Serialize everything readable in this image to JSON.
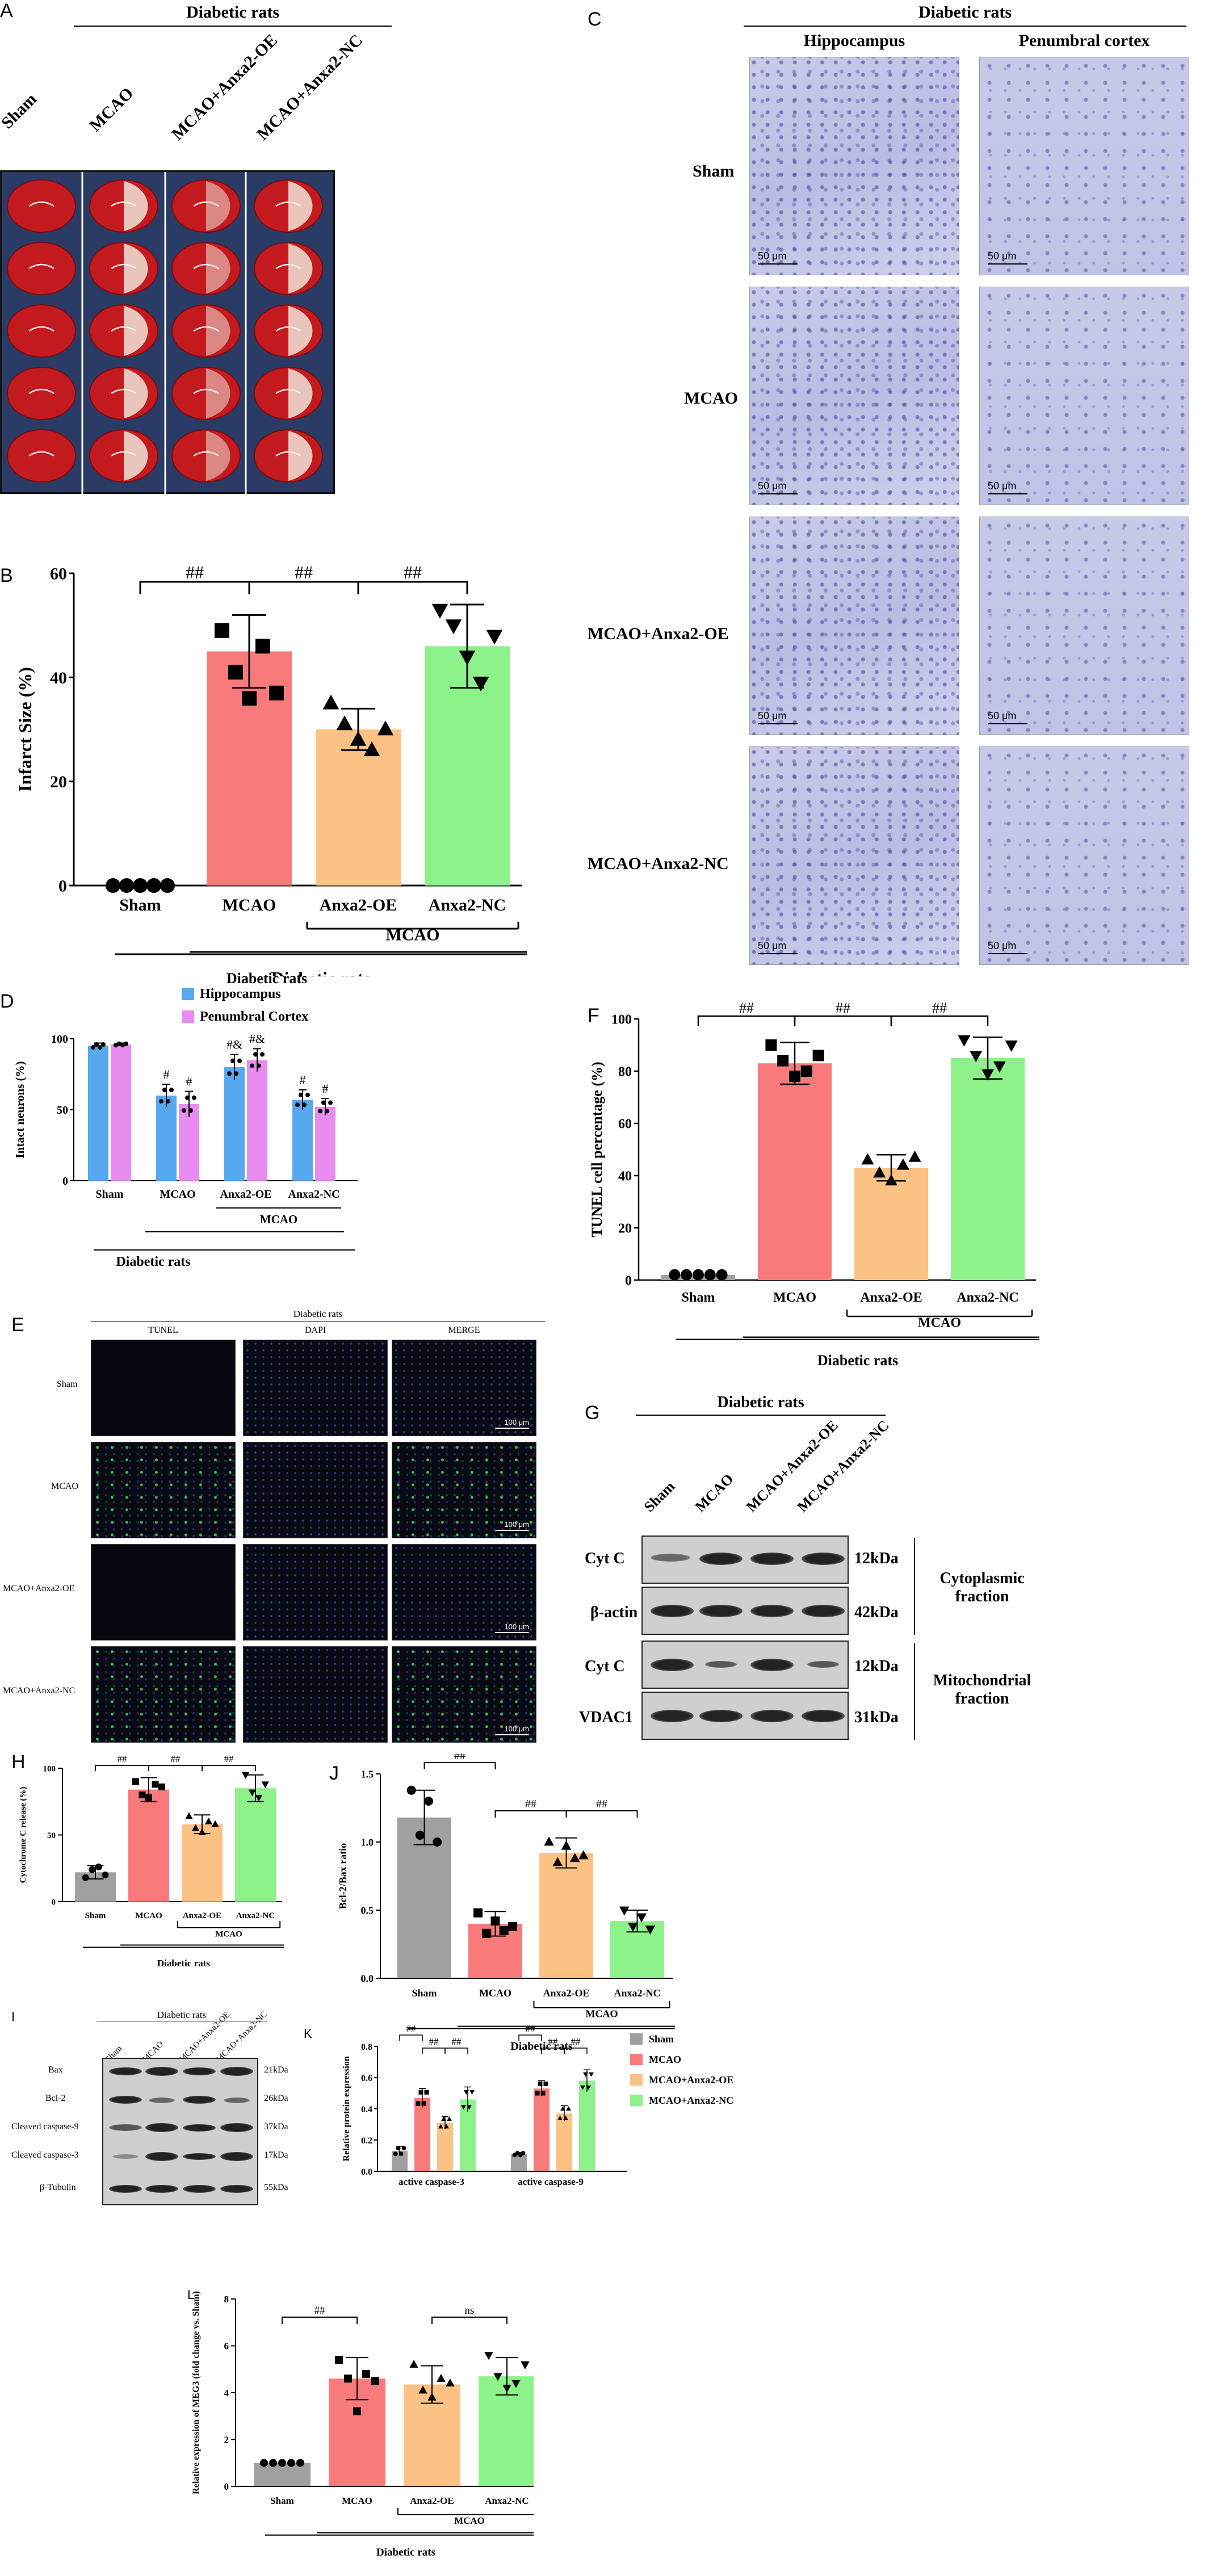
{
  "panels": {
    "A": "A",
    "B": "B",
    "C": "C",
    "D": "D",
    "E": "E",
    "F": "F",
    "G": "G",
    "H": "H",
    "I": "I",
    "J": "J",
    "K": "K",
    "L": "L"
  },
  "group_title": "Diabetic rats",
  "mcao_bracket": "MCAO",
  "groups4": [
    "Sham",
    "MCAO",
    "MCAO+Anxa2-OE",
    "MCAO+Anxa2-NC"
  ],
  "xcats": [
    "Sham",
    "MCAO",
    "Anxa2-OE",
    "Anxa2-NC"
  ],
  "sig": {
    "hh": "##",
    "ns": "ns",
    "h": "#",
    "hamp": "#&"
  },
  "panelC": {
    "cols": [
      "Hippocampus",
      "Penumbral cortex"
    ],
    "rows": [
      "Sham",
      "MCAO",
      "MCAO+Anxa2-OE",
      "MCAO+Anxa2-NC"
    ],
    "scale": "50 μm"
  },
  "panelE": {
    "cols": [
      "TUNEL",
      "DAPI",
      "MERGE"
    ],
    "rows": [
      "Sham",
      "MCAO",
      "MCAO+Anxa2-OE",
      "MCAO+Anxa2-NC"
    ],
    "scale": "100 μm"
  },
  "panelG": {
    "rows": [
      "Cyt C",
      "β-actin",
      "Cyt C",
      "VDAC1"
    ],
    "kda": [
      "12kDa",
      "42kDa",
      "12kDa",
      "31kDa"
    ],
    "fractions": [
      "Cytoplasmic fraction",
      "Mitochondrial fraction"
    ]
  },
  "panelI": {
    "rows": [
      "Bax",
      "Bcl-2",
      "Cleaved caspase-9",
      "Cleaved caspase-3",
      "β-Tubulin"
    ],
    "kda": [
      "21kDa",
      "26kDa",
      "37kDa",
      "17kDa",
      "55kDa"
    ]
  },
  "colors": {
    "sham": "#a0a0a0",
    "mcao": "#f87a7a",
    "oe": "#fcc283",
    "nc": "#8ef28a",
    "hippo": "#56a8ef",
    "cortex": "#e98cf0"
  },
  "chart_data": [
    {
      "id": "B",
      "type": "bar",
      "ylabel": "Infarct Size (%)",
      "ylim": [
        0,
        60
      ],
      "yticks": [
        0,
        20,
        40,
        60
      ],
      "categories": [
        "Sham",
        "MCAO",
        "Anxa2-OE",
        "Anxa2-NC"
      ],
      "values": [
        0,
        45,
        30,
        46
      ],
      "errors": [
        0,
        7,
        4,
        8
      ],
      "points": [
        [
          0,
          0,
          0,
          0,
          0
        ],
        [
          49,
          41,
          36,
          46,
          37
        ],
        [
          35,
          31,
          28,
          26,
          30
        ],
        [
          53,
          50,
          44,
          39,
          48
        ]
      ]
    },
    {
      "id": "D",
      "type": "bar",
      "ylabel": "Intact neurons (%)",
      "ylim": [
        0,
        100
      ],
      "yticks": [
        0,
        50,
        100
      ],
      "categories": [
        "Sham",
        "MCAO",
        "Anxa2-OE",
        "Anxa2-NC"
      ],
      "series": [
        {
          "name": "Hippocampus",
          "values": [
            95,
            60,
            80,
            57
          ],
          "errors": [
            2,
            8,
            9,
            7
          ]
        },
        {
          "name": "Penumbral Cortex",
          "values": [
            96,
            54,
            85,
            52
          ],
          "errors": [
            1,
            9,
            8,
            6
          ]
        }
      ]
    },
    {
      "id": "F",
      "type": "bar",
      "ylabel": "TUNEL cell percentage (%)",
      "ylim": [
        0,
        100
      ],
      "yticks": [
        0,
        20,
        40,
        60,
        80,
        100
      ],
      "categories": [
        "Sham",
        "MCAO",
        "Anxa2-OE",
        "Anxa2-NC"
      ],
      "values": [
        2,
        83,
        43,
        85
      ],
      "errors": [
        0,
        8,
        5,
        8
      ],
      "points": [
        [
          2,
          2,
          2,
          2,
          2
        ],
        [
          90,
          84,
          78,
          80,
          86
        ],
        [
          46,
          41,
          38,
          44,
          47
        ],
        [
          92,
          86,
          79,
          82,
          90
        ]
      ]
    },
    {
      "id": "H",
      "type": "bar",
      "ylabel": "Cytochrome C release (%)",
      "ylim": [
        0,
        100
      ],
      "yticks": [
        0,
        50,
        100
      ],
      "categories": [
        "Sham",
        "MCAO",
        "Anxa2-OE",
        "Anxa2-NC"
      ],
      "values": [
        22,
        84,
        58,
        85
      ],
      "errors": [
        5,
        9,
        7,
        10
      ],
      "points": [
        [
          18,
          24,
          26,
          20
        ],
        [
          90,
          80,
          78,
          88,
          86
        ],
        [
          64,
          55,
          52,
          60,
          58
        ],
        [
          95,
          82,
          78,
          88
        ]
      ]
    },
    {
      "id": "J",
      "type": "bar",
      "ylabel": "Bcl-2/Bax ratio",
      "ylim": [
        0,
        1.5
      ],
      "yticks": [
        0.0,
        0.5,
        1.0,
        1.5
      ],
      "categories": [
        "Sham",
        "MCAO",
        "Anxa2-OE",
        "Anxa2-NC"
      ],
      "values": [
        1.18,
        0.4,
        0.92,
        0.42
      ],
      "errors": [
        0.2,
        0.09,
        0.11,
        0.08
      ],
      "points": [
        [
          1.38,
          1.05,
          1.3,
          1.0
        ],
        [
          0.48,
          0.33,
          0.42,
          0.35,
          0.38
        ],
        [
          1.0,
          0.85,
          0.97,
          0.88,
          0.9
        ],
        [
          0.5,
          0.38,
          0.45,
          0.36
        ]
      ]
    },
    {
      "id": "K",
      "type": "bar",
      "ylabel": "Relative protein expression",
      "ylim": [
        0,
        0.8
      ],
      "yticks": [
        0.0,
        0.2,
        0.4,
        0.6,
        0.8
      ],
      "categories": [
        "active caspase-3",
        "active caspase-9"
      ],
      "series": [
        {
          "name": "Sham",
          "values": [
            0.13,
            0.11
          ],
          "errors": [
            0.03,
            0.01
          ]
        },
        {
          "name": "MCAO",
          "values": [
            0.47,
            0.53
          ],
          "errors": [
            0.06,
            0.05
          ]
        },
        {
          "name": "MCAO+Anxa2-OE",
          "values": [
            0.31,
            0.37
          ],
          "errors": [
            0.04,
            0.05
          ]
        },
        {
          "name": "MCAO+Anxa2-NC",
          "values": [
            0.46,
            0.58
          ],
          "errors": [
            0.08,
            0.07
          ]
        }
      ]
    },
    {
      "id": "L",
      "type": "bar",
      "ylabel": "Relative expression of MEG3 (fold change vs. Sham)",
      "ylim": [
        0,
        8
      ],
      "yticks": [
        0,
        2,
        4,
        6,
        8
      ],
      "categories": [
        "Sham",
        "MCAO",
        "Anxa2-OE",
        "Anxa2-NC"
      ],
      "values": [
        1.0,
        4.6,
        4.35,
        4.7
      ],
      "errors": [
        0,
        0.9,
        0.8,
        0.8
      ],
      "points": [
        [
          1,
          1,
          1,
          1,
          1
        ],
        [
          5.4,
          4.6,
          3.2,
          4.8,
          4.5
        ],
        [
          5.2,
          4.1,
          3.8,
          4.6,
          4.4
        ],
        [
          5.6,
          4.7,
          4.2,
          4.4,
          5.2
        ]
      ]
    }
  ]
}
